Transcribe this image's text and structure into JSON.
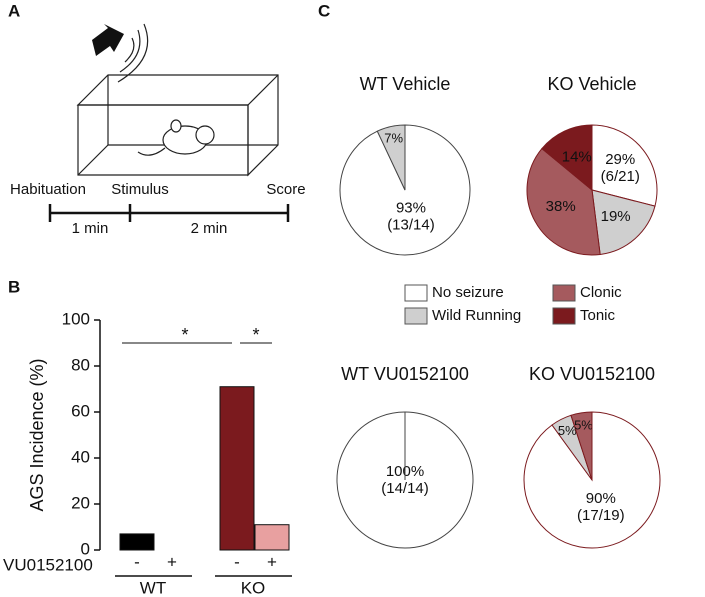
{
  "panel_labels": [
    "A",
    "B",
    "C"
  ],
  "diagram": {
    "phases": [
      "Habituation",
      "Stimulus",
      "Score"
    ],
    "durations": [
      "1 min",
      "2 min"
    ]
  },
  "pie_legend": {
    "names": [
      "No seizure",
      "Wild Running",
      "Clonic",
      "Tonic"
    ],
    "colors": [
      "#ffffff",
      "#cfcfcf",
      "#a55a5e",
      "#7b1a1e"
    ]
  },
  "chart_data": [
    {
      "type": "bar",
      "ylabel": "AGS Incidence (%)",
      "categories": [
        "-",
        "+",
        "-",
        "+"
      ],
      "groups": [
        "WT",
        "KO"
      ],
      "row_label": "VU0152100",
      "values": [
        7,
        0,
        71,
        11
      ],
      "colors": [
        "#000000",
        "#000000",
        "#7b1a1e",
        "#e8a0a0"
      ],
      "ylim": [
        0,
        100
      ],
      "yticks": [
        0,
        20,
        40,
        60,
        80,
        100
      ],
      "annotations": [
        "*",
        "*"
      ]
    },
    {
      "type": "pie",
      "title": "WT Vehicle",
      "edgecolor": "#444444",
      "values": [
        93,
        7,
        0,
        0
      ],
      "value_labels": [
        "93%",
        "7%",
        null,
        null
      ],
      "counts": [
        "(13/14)",
        null,
        null,
        null
      ]
    },
    {
      "type": "pie",
      "title": "KO Vehicle",
      "edgecolor": "#7b1a1e",
      "values": [
        29,
        19,
        38,
        14
      ],
      "value_labels": [
        "29%",
        "19%",
        "38%",
        "14%"
      ],
      "counts": [
        "(6/21)",
        null,
        null,
        null
      ]
    },
    {
      "type": "pie",
      "title": "WT VU0152100",
      "edgecolor": "#444444",
      "values": [
        100,
        0,
        0,
        0
      ],
      "value_labels": [
        "100%",
        null,
        null,
        null
      ],
      "counts": [
        "(14/14)",
        null,
        null,
        null
      ]
    },
    {
      "type": "pie",
      "title": "KO VU0152100",
      "edgecolor": "#7b1a1e",
      "values": [
        90,
        5,
        5,
        0
      ],
      "value_labels": [
        "90%",
        "5%",
        "5%",
        null
      ],
      "counts": [
        "(17/19)",
        null,
        null,
        null
      ]
    }
  ]
}
